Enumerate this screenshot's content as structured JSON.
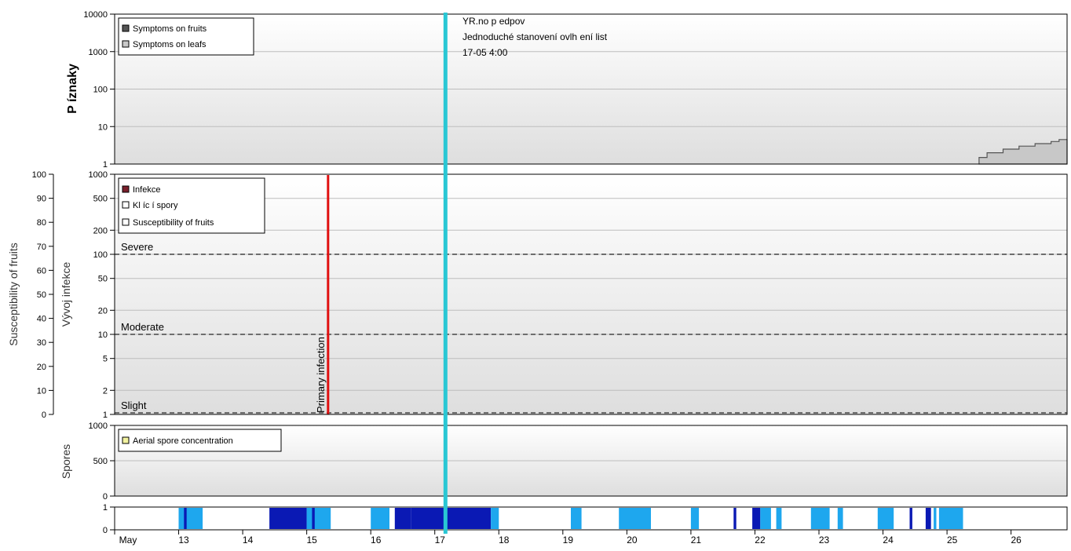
{
  "colors": {
    "symptoms_fruits": "#555555",
    "symptoms_leaves": "#c8c8c8",
    "infection": "#7a1f2b",
    "primary_infection_line": "#e01010",
    "current_time_line": "#29c7d4",
    "wetness_light": "#1ea7ee",
    "wetness_dark": "#0a19b4",
    "aerial_spores": "#f2f2a0"
  },
  "chart_data": [
    {
      "type": "area",
      "ylabel": "P íznaky",
      "yscale": "log",
      "ylim": [
        1,
        10000
      ],
      "yticks": [
        "1",
        "10",
        "100",
        "1000",
        "10000"
      ],
      "legend": {
        "placement": "top-left",
        "entries": [
          "Symptoms on fruits",
          "Symptoms on leafs"
        ]
      },
      "annotation_lines": [
        "YR.no p edpov",
        "Jednoduché stanovení ovlh ení list",
        "17-05 4:00"
      ],
      "series": [
        {
          "name": "Symptoms on fruits",
          "x": [
            "2024-05-25T12:00",
            "2024-05-25T15:00",
            "2024-05-25T18:00",
            "2024-05-25T21:00",
            "2024-05-26T00:00",
            "2024-05-26T03:00",
            "2024-05-26T06:00",
            "2024-05-26T09:00",
            "2024-05-26T12:00",
            "2024-05-26T15:00",
            "2024-05-26T18:00"
          ],
          "values": [
            1.5,
            2,
            2,
            2.5,
            2.5,
            3,
            3,
            3.5,
            3.5,
            4,
            4.5
          ]
        }
      ]
    },
    {
      "type": "line",
      "ylabel": "Vývoj infekce",
      "ylabel_secondary": "Susceptibility of fruits",
      "yscale": "log",
      "ylim": [
        1,
        1000
      ],
      "yticks": [
        "1",
        "2",
        "5",
        "10",
        "20",
        "50",
        "100",
        "200",
        "500",
        "1000"
      ],
      "yticks_secondary": [
        "0",
        "10",
        "20",
        "30",
        "40",
        "50",
        "60",
        "70",
        "80",
        "90",
        "100"
      ],
      "legend": {
        "placement": "top-left",
        "entries": [
          "Infekce",
          "Kl íc í spory",
          "Susceptibility of fruits"
        ]
      },
      "thresholds": [
        {
          "label": "Severe",
          "value": 100
        },
        {
          "label": "Moderate",
          "value": 10
        },
        {
          "label": "Slight",
          "value": 1
        }
      ],
      "events": [
        {
          "label": "Primary infection",
          "x": "2024-05-15T08:00"
        }
      ]
    },
    {
      "type": "area",
      "ylabel": "Spores",
      "ylim": [
        0,
        1000
      ],
      "yticks": [
        "0",
        "500",
        "1000"
      ],
      "legend": {
        "placement": "top-left",
        "entries": [
          "Aerial spore concentration"
        ]
      },
      "series": []
    },
    {
      "type": "bar",
      "ylim": [
        0,
        1
      ],
      "yticks": [
        "0",
        "1"
      ],
      "x_axis": {
        "ticks": [
          "May",
          "13",
          "14",
          "15",
          "16",
          "17",
          "18",
          "19",
          "20",
          "21",
          "22",
          "23",
          "24",
          "25",
          "26"
        ]
      },
      "wetness_periods": [
        {
          "start": "2024-05-13T00:00",
          "end": "2024-05-13T09:00",
          "level": "light"
        },
        {
          "start": "2024-05-13T02:00",
          "end": "2024-05-13T03:00",
          "level": "dark"
        },
        {
          "start": "2024-05-14T10:00",
          "end": "2024-05-15T00:00",
          "level": "dark"
        },
        {
          "start": "2024-05-15T00:00",
          "end": "2024-05-15T09:00",
          "level": "light"
        },
        {
          "start": "2024-05-15T02:00",
          "end": "2024-05-15T03:00",
          "level": "dark"
        },
        {
          "start": "2024-05-16T00:00",
          "end": "2024-05-16T07:00",
          "level": "light"
        },
        {
          "start": "2024-05-16T09:00",
          "end": "2024-05-16T15:00",
          "level": "dark"
        },
        {
          "start": "2024-05-16T15:00",
          "end": "2024-05-17T21:00",
          "level": "dark"
        },
        {
          "start": "2024-05-17T21:00",
          "end": "2024-05-18T00:00",
          "level": "light"
        },
        {
          "start": "2024-05-19T03:00",
          "end": "2024-05-19T07:00",
          "level": "light"
        },
        {
          "start": "2024-05-19T21:00",
          "end": "2024-05-20T09:00",
          "level": "light"
        },
        {
          "start": "2024-05-21T00:00",
          "end": "2024-05-21T03:00",
          "level": "light"
        },
        {
          "start": "2024-05-21T16:00",
          "end": "2024-05-21T17:00",
          "level": "dark"
        },
        {
          "start": "2024-05-21T23:00",
          "end": "2024-05-22T02:00",
          "level": "dark"
        },
        {
          "start": "2024-05-22T02:00",
          "end": "2024-05-22T06:00",
          "level": "light"
        },
        {
          "start": "2024-05-22T08:00",
          "end": "2024-05-22T10:00",
          "level": "light"
        },
        {
          "start": "2024-05-22T21:00",
          "end": "2024-05-23T04:00",
          "level": "light"
        },
        {
          "start": "2024-05-23T07:00",
          "end": "2024-05-23T09:00",
          "level": "light"
        },
        {
          "start": "2024-05-23T22:00",
          "end": "2024-05-24T04:00",
          "level": "light"
        },
        {
          "start": "2024-05-24T10:00",
          "end": "2024-05-24T11:00",
          "level": "dark"
        },
        {
          "start": "2024-05-24T16:00",
          "end": "2024-05-24T18:00",
          "level": "dark"
        },
        {
          "start": "2024-05-24T19:00",
          "end": "2024-05-24T20:00",
          "level": "light"
        },
        {
          "start": "2024-05-24T21:00",
          "end": "2024-05-25T06:00",
          "level": "light"
        }
      ],
      "current_time": "2024-05-17T04:00"
    }
  ]
}
